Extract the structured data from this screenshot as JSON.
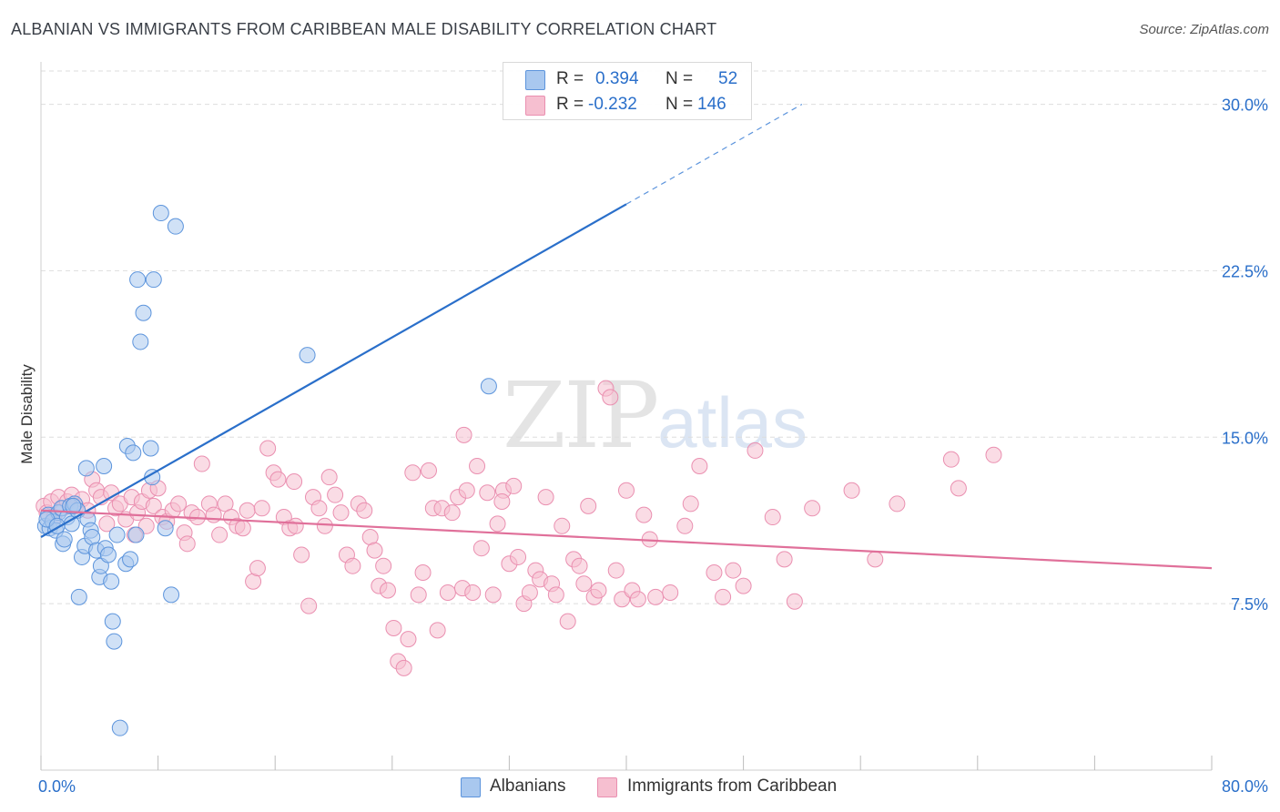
{
  "title": "ALBANIAN VS IMMIGRANTS FROM CARIBBEAN MALE DISABILITY CORRELATION CHART",
  "source": "Source: ZipAtlas.com",
  "watermark": {
    "zip": "ZIP",
    "atlas": "atlas"
  },
  "colors": {
    "blue": "#2a6fca",
    "blue_fill": "#a9c8ef",
    "blue_stroke": "#5c94dc",
    "pink": "#e0709a",
    "pink_fill": "#f6bfd0",
    "pink_stroke": "#ea8fb0",
    "grid": "#dddddd",
    "axis_label": "#2a6fca"
  },
  "legend": {
    "r_label": "R =",
    "n_label": "N =",
    "series": [
      {
        "r": "0.394",
        "n": "52"
      },
      {
        "r": "-0.232",
        "n": "146"
      }
    ]
  },
  "bottom_legend": [
    "Albanians",
    "Immigrants from Caribbean"
  ],
  "chart_data": {
    "type": "scatter",
    "title": "ALBANIAN VS IMMIGRANTS FROM CARIBBEAN MALE DISABILITY CORRELATION CHART",
    "xlabel": "",
    "ylabel": "Male Disability",
    "xlim": [
      0,
      80
    ],
    "ylim": [
      0,
      31.5
    ],
    "x_tick_labels": [
      "0.0%",
      "80.0%"
    ],
    "y_ticks": [
      7.5,
      15.0,
      22.5,
      30.0
    ],
    "y_tick_labels": [
      "7.5%",
      "15.0%",
      "22.5%",
      "30.0%"
    ],
    "grid": true,
    "series": [
      {
        "name": "Albanians",
        "trend": {
          "x0": 0,
          "y0": 10.5,
          "x1": 40,
          "y1": 25.5,
          "dash_to_x": 52,
          "dash_to_y": 30.0
        },
        "points": [
          [
            0.3,
            11.0
          ],
          [
            0.5,
            11.5
          ],
          [
            0.6,
            10.9
          ],
          [
            0.8,
            11.2
          ],
          [
            1.0,
            10.8
          ],
          [
            1.2,
            11.6
          ],
          [
            1.4,
            11.8
          ],
          [
            1.5,
            10.2
          ],
          [
            1.6,
            10.4
          ],
          [
            1.8,
            11.4
          ],
          [
            2.0,
            11.9
          ],
          [
            2.1,
            11.1
          ],
          [
            2.3,
            12.0
          ],
          [
            2.5,
            11.7
          ],
          [
            2.6,
            7.8
          ],
          [
            2.8,
            9.6
          ],
          [
            3.0,
            10.1
          ],
          [
            3.1,
            13.6
          ],
          [
            3.2,
            11.3
          ],
          [
            3.4,
            10.8
          ],
          [
            3.5,
            10.5
          ],
          [
            3.8,
            9.9
          ],
          [
            4.0,
            8.7
          ],
          [
            4.1,
            9.2
          ],
          [
            4.3,
            13.7
          ],
          [
            4.4,
            10.0
          ],
          [
            4.6,
            9.7
          ],
          [
            4.8,
            8.5
          ],
          [
            4.9,
            6.7
          ],
          [
            5.0,
            5.8
          ],
          [
            5.4,
            1.9
          ],
          [
            5.8,
            9.3
          ],
          [
            5.9,
            14.6
          ],
          [
            6.1,
            9.5
          ],
          [
            6.3,
            14.3
          ],
          [
            6.5,
            10.6
          ],
          [
            6.6,
            22.1
          ],
          [
            6.8,
            19.3
          ],
          [
            7.0,
            20.6
          ],
          [
            7.5,
            14.5
          ],
          [
            7.6,
            13.2
          ],
          [
            7.7,
            22.1
          ],
          [
            8.2,
            25.1
          ],
          [
            8.5,
            10.9
          ],
          [
            8.9,
            7.9
          ],
          [
            9.2,
            24.5
          ],
          [
            18.2,
            18.7
          ],
          [
            30.6,
            17.3
          ],
          [
            0.4,
            11.3
          ],
          [
            1.1,
            11.0
          ],
          [
            2.2,
            11.9
          ],
          [
            5.2,
            10.6
          ]
        ]
      },
      {
        "name": "Immigrants from Caribbean",
        "trend": {
          "x0": 0,
          "y0": 11.7,
          "x1": 80,
          "y1": 9.1
        },
        "points": [
          [
            0.2,
            11.9
          ],
          [
            0.4,
            11.6
          ],
          [
            0.7,
            12.1
          ],
          [
            0.9,
            11.4
          ],
          [
            1.2,
            12.3
          ],
          [
            1.5,
            11.8
          ],
          [
            1.8,
            12.1
          ],
          [
            2.1,
            12.4
          ],
          [
            2.4,
            11.9
          ],
          [
            2.8,
            12.2
          ],
          [
            3.2,
            11.7
          ],
          [
            3.5,
            13.1
          ],
          [
            3.8,
            12.6
          ],
          [
            4.1,
            12.3
          ],
          [
            4.5,
            11.1
          ],
          [
            4.8,
            12.5
          ],
          [
            5.1,
            11.8
          ],
          [
            5.4,
            12.0
          ],
          [
            5.8,
            11.3
          ],
          [
            6.2,
            12.3
          ],
          [
            6.4,
            10.6
          ],
          [
            6.6,
            11.6
          ],
          [
            6.9,
            12.1
          ],
          [
            7.2,
            11.0
          ],
          [
            7.4,
            12.6
          ],
          [
            7.7,
            11.9
          ],
          [
            8.0,
            12.7
          ],
          [
            8.3,
            11.4
          ],
          [
            8.6,
            11.2
          ],
          [
            9.0,
            11.7
          ],
          [
            9.4,
            12.0
          ],
          [
            9.8,
            10.7
          ],
          [
            10.0,
            10.2
          ],
          [
            10.3,
            11.6
          ],
          [
            10.7,
            11.4
          ],
          [
            11.0,
            13.8
          ],
          [
            11.5,
            12.0
          ],
          [
            11.8,
            11.5
          ],
          [
            12.2,
            10.6
          ],
          [
            12.6,
            12.0
          ],
          [
            13.0,
            11.4
          ],
          [
            13.4,
            11.0
          ],
          [
            13.8,
            10.9
          ],
          [
            14.1,
            11.7
          ],
          [
            14.5,
            8.5
          ],
          [
            14.8,
            9.1
          ],
          [
            15.1,
            11.8
          ],
          [
            15.5,
            14.5
          ],
          [
            15.9,
            13.4
          ],
          [
            16.2,
            13.1
          ],
          [
            16.6,
            11.4
          ],
          [
            17.0,
            10.9
          ],
          [
            17.4,
            11.0
          ],
          [
            17.8,
            9.7
          ],
          [
            18.3,
            7.4
          ],
          [
            18.6,
            12.3
          ],
          [
            19.0,
            11.8
          ],
          [
            19.4,
            11.0
          ],
          [
            19.7,
            13.2
          ],
          [
            20.1,
            12.4
          ],
          [
            20.5,
            11.6
          ],
          [
            20.9,
            9.7
          ],
          [
            21.3,
            9.2
          ],
          [
            21.7,
            12.0
          ],
          [
            22.1,
            11.7
          ],
          [
            22.5,
            10.5
          ],
          [
            22.8,
            9.9
          ],
          [
            23.1,
            8.3
          ],
          [
            23.4,
            9.2
          ],
          [
            23.7,
            8.1
          ],
          [
            24.1,
            6.4
          ],
          [
            24.4,
            4.9
          ],
          [
            24.8,
            4.6
          ],
          [
            25.1,
            5.9
          ],
          [
            25.4,
            13.4
          ],
          [
            25.8,
            7.9
          ],
          [
            26.1,
            8.9
          ],
          [
            26.5,
            13.5
          ],
          [
            26.8,
            11.8
          ],
          [
            27.1,
            6.3
          ],
          [
            27.4,
            11.8
          ],
          [
            27.8,
            8.0
          ],
          [
            28.1,
            11.6
          ],
          [
            28.5,
            12.3
          ],
          [
            28.8,
            8.2
          ],
          [
            29.1,
            12.6
          ],
          [
            29.5,
            8.0
          ],
          [
            29.8,
            13.7
          ],
          [
            30.1,
            10.0
          ],
          [
            30.5,
            12.5
          ],
          [
            30.9,
            7.9
          ],
          [
            31.2,
            11.1
          ],
          [
            31.6,
            12.6
          ],
          [
            32.0,
            9.3
          ],
          [
            32.3,
            12.8
          ],
          [
            32.6,
            9.6
          ],
          [
            33.0,
            7.5
          ],
          [
            33.4,
            8.0
          ],
          [
            33.8,
            9.0
          ],
          [
            34.1,
            8.6
          ],
          [
            34.5,
            12.3
          ],
          [
            34.9,
            8.4
          ],
          [
            35.2,
            7.9
          ],
          [
            35.6,
            11.0
          ],
          [
            36.0,
            6.7
          ],
          [
            36.4,
            9.5
          ],
          [
            36.8,
            9.2
          ],
          [
            37.1,
            8.4
          ],
          [
            37.4,
            11.9
          ],
          [
            37.8,
            7.8
          ],
          [
            38.1,
            8.1
          ],
          [
            38.6,
            17.2
          ],
          [
            38.9,
            16.8
          ],
          [
            39.3,
            9.0
          ],
          [
            39.7,
            7.7
          ],
          [
            40.0,
            12.6
          ],
          [
            40.4,
            8.1
          ],
          [
            40.8,
            7.7
          ],
          [
            41.2,
            11.5
          ],
          [
            41.6,
            10.4
          ],
          [
            42.0,
            7.8
          ],
          [
            43.0,
            8.0
          ],
          [
            44.0,
            11.0
          ],
          [
            45.0,
            13.7
          ],
          [
            46.0,
            8.9
          ],
          [
            46.6,
            7.8
          ],
          [
            47.3,
            9.0
          ],
          [
            48.0,
            8.3
          ],
          [
            48.8,
            14.4
          ],
          [
            50.0,
            11.4
          ],
          [
            50.8,
            9.5
          ],
          [
            51.5,
            7.6
          ],
          [
            52.7,
            11.8
          ],
          [
            55.4,
            12.6
          ],
          [
            57.0,
            9.5
          ],
          [
            58.5,
            12.0
          ],
          [
            62.2,
            14.0
          ],
          [
            62.7,
            12.7
          ],
          [
            65.1,
            14.2
          ],
          [
            44.4,
            12.0
          ],
          [
            28.9,
            15.1
          ],
          [
            31.5,
            12.1
          ],
          [
            17.3,
            13.0
          ]
        ]
      }
    ]
  }
}
